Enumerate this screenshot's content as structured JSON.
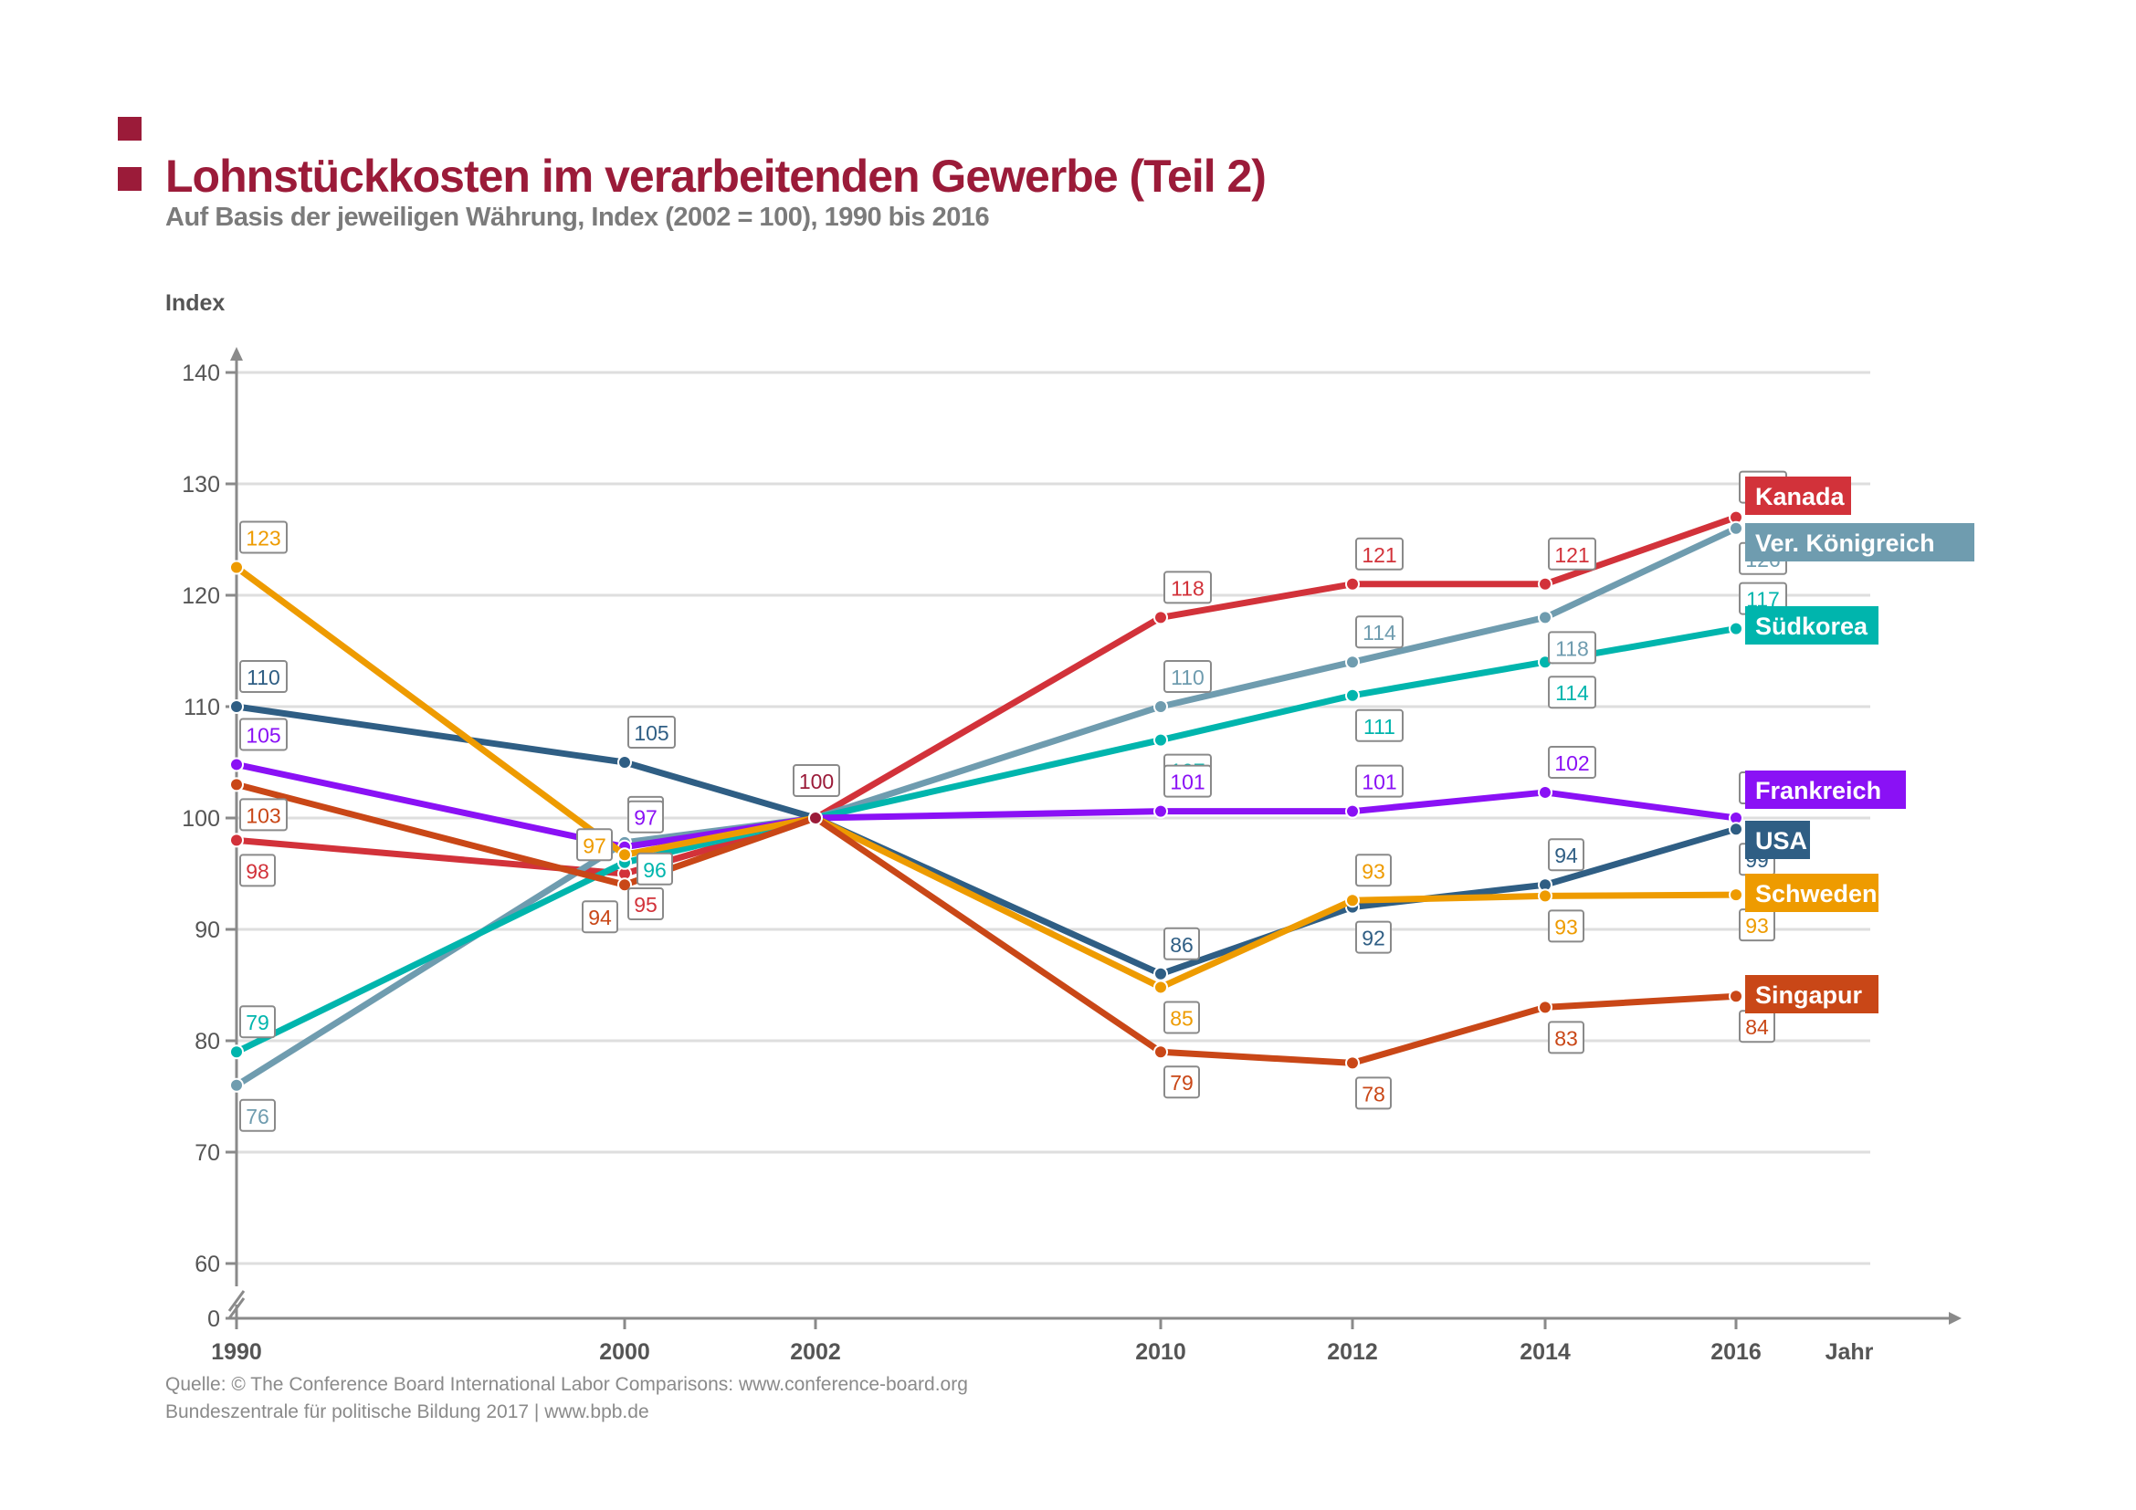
{
  "header": {
    "title": "Lohnstückkosten im verarbeitenden Gewerbe (Teil 2)",
    "subtitle": "Auf Basis der jeweiligen Währung, Index (2002 = 100), 1990 bis 2016"
  },
  "footer": {
    "source": "Quelle: © The Conference Board International Labor Comparisons: www.conference-board.org",
    "publisher": "Bundeszentrale für politische Bildung 2017  |  www.bpb.de"
  },
  "colors": {
    "brand": "#9b1b39",
    "grid": "#dcdcdc",
    "axis": "#8a8a8a"
  },
  "chart_data": {
    "type": "line",
    "title": "Lohnstückkosten im verarbeitenden Gewerbe (Teil 2)",
    "subtitle": "Auf Basis der jeweiligen Währung, Index (2002 = 100), 1990 bis 2016",
    "xlabel": "Jahr",
    "ylabel": "Index",
    "x": [
      1990,
      2000,
      2002,
      2010,
      2012,
      2014,
      2016
    ],
    "x_tick_labels": [
      "1990",
      "2000",
      "2002",
      "2010",
      "2012",
      "2014",
      "2016"
    ],
    "y_ticks": [
      0,
      60,
      70,
      80,
      90,
      100,
      110,
      120,
      130,
      140
    ],
    "y_axis_break": "between 0 and 60",
    "ylim": [
      60,
      140
    ],
    "grid": true,
    "legend": "right, labels at line ends",
    "series": [
      {
        "name": "Kanada",
        "color": "#d2323a",
        "values": [
          98,
          95,
          100,
          118,
          121,
          121,
          127
        ],
        "plot_values": [
          98,
          95,
          100,
          118,
          121,
          121,
          127
        ],
        "labels": [
          "98",
          "95",
          "100",
          "118",
          "121",
          "121",
          "127"
        ]
      },
      {
        "name": "Ver. Königreich",
        "color": "#6f9caf",
        "values": [
          76,
          98,
          100,
          110,
          114,
          118,
          126
        ],
        "plot_values": [
          76,
          97.8,
          100,
          110,
          114,
          118,
          126
        ],
        "labels": [
          "76",
          "98",
          "100",
          "110",
          "114",
          "118",
          "126"
        ]
      },
      {
        "name": "Südkorea",
        "color": "#00b5ad",
        "values": [
          79,
          96,
          100,
          107,
          111,
          114,
          117
        ],
        "plot_values": [
          79,
          96,
          100,
          107,
          111,
          114,
          117
        ],
        "labels": [
          "79",
          "96",
          "100",
          "107",
          "111",
          "114",
          "117"
        ]
      },
      {
        "name": "Frankreich",
        "color": "#8a11f5",
        "values": [
          105,
          97,
          100,
          101,
          101,
          102,
          100
        ],
        "plot_values": [
          104.8,
          97.4,
          100,
          100.6,
          100.6,
          102.3,
          100
        ],
        "labels": [
          "105",
          "97",
          "100",
          "101",
          "101",
          "102",
          "100"
        ]
      },
      {
        "name": "USA",
        "color": "#2f5e84",
        "values": [
          110,
          105,
          100,
          86,
          92,
          94,
          99
        ],
        "plot_values": [
          110,
          105,
          100,
          86,
          92,
          94,
          99
        ],
        "labels": [
          "110",
          "105",
          "100",
          "86",
          "92",
          "94",
          "99"
        ]
      },
      {
        "name": "Schweden",
        "color": "#ee9b00",
        "values": [
          123,
          97,
          100,
          85,
          93,
          93,
          93
        ],
        "plot_values": [
          122.5,
          96.7,
          100,
          84.8,
          92.6,
          93,
          93.1
        ],
        "labels": [
          "123",
          "97",
          "100",
          "85",
          "93",
          "93",
          "93"
        ]
      },
      {
        "name": "Singapur",
        "color": "#c94717",
        "values": [
          103,
          94,
          100,
          79,
          78,
          83,
          84
        ],
        "plot_values": [
          103,
          94,
          100,
          79,
          78,
          83,
          84
        ],
        "labels": [
          "103",
          "94",
          "100",
          "79",
          "78",
          "83",
          "84"
        ]
      }
    ],
    "annotations": [
      {
        "x": 2002,
        "text": "100",
        "note": "common base point of all series"
      }
    ]
  }
}
